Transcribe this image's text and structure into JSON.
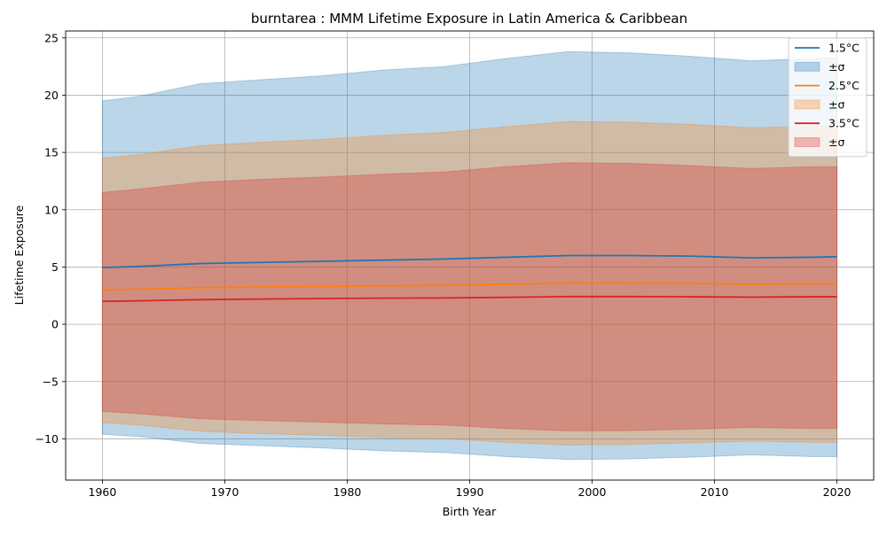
{
  "chart_data": {
    "type": "area",
    "title": "burntarea : MMM Lifetime Exposure in Latin America & Caribbean",
    "xlabel": "Birth Year",
    "ylabel": "Lifetime Exposure",
    "xlim": [
      1957,
      2023
    ],
    "ylim": [
      -13.6,
      25.6
    ],
    "xticks": [
      1960,
      1970,
      1980,
      1990,
      2000,
      2010,
      2020
    ],
    "xtick_labels": [
      "1960",
      "1970",
      "1980",
      "1990",
      "2000",
      "2010",
      "2020"
    ],
    "yticks": [
      -10,
      -5,
      0,
      5,
      10,
      15,
      20,
      25
    ],
    "ytick_labels": [
      "−10",
      "−5",
      "0",
      "5",
      "10",
      "15",
      "20",
      "25"
    ],
    "grid": true,
    "legend_position": "top-right",
    "x": [
      1960,
      1963,
      1968,
      1973,
      1978,
      1983,
      1988,
      1993,
      1998,
      2003,
      2008,
      2013,
      2018,
      2020
    ],
    "series": [
      {
        "name": "1.5°C",
        "band_label": "±σ",
        "color": "#1f77b4",
        "mean": [
          4.95,
          5.05,
          5.3,
          5.4,
          5.5,
          5.6,
          5.7,
          5.85,
          6.0,
          6.0,
          5.95,
          5.8,
          5.85,
          5.9
        ],
        "upper": [
          19.5,
          19.9,
          21.0,
          21.35,
          21.7,
          22.2,
          22.5,
          23.2,
          23.8,
          23.7,
          23.4,
          23.0,
          23.2,
          23.3
        ],
        "lower": [
          -9.6,
          -9.8,
          -10.4,
          -10.6,
          -10.8,
          -11.05,
          -11.2,
          -11.55,
          -11.8,
          -11.75,
          -11.6,
          -11.4,
          -11.55,
          -11.55
        ]
      },
      {
        "name": "2.5°C",
        "band_label": "±σ",
        "color": "#ff7f0e",
        "mean": [
          3.0,
          3.05,
          3.2,
          3.25,
          3.3,
          3.35,
          3.4,
          3.5,
          3.6,
          3.6,
          3.58,
          3.5,
          3.55,
          3.55
        ],
        "upper": [
          14.5,
          14.8,
          15.6,
          15.9,
          16.15,
          16.5,
          16.75,
          17.25,
          17.7,
          17.65,
          17.45,
          17.15,
          17.3,
          17.35
        ],
        "lower": [
          -8.6,
          -8.8,
          -9.35,
          -9.55,
          -9.7,
          -9.9,
          -10.0,
          -10.3,
          -10.55,
          -10.5,
          -10.35,
          -10.2,
          -10.3,
          -10.3
        ]
      },
      {
        "name": "3.5°C",
        "band_label": "±σ",
        "color": "#d62728",
        "mean": [
          2.0,
          2.05,
          2.15,
          2.2,
          2.25,
          2.28,
          2.3,
          2.35,
          2.42,
          2.42,
          2.4,
          2.37,
          2.4,
          2.4
        ],
        "upper": [
          11.5,
          11.8,
          12.4,
          12.65,
          12.85,
          13.1,
          13.3,
          13.75,
          14.1,
          14.05,
          13.85,
          13.6,
          13.75,
          13.75
        ],
        "lower": [
          -7.6,
          -7.8,
          -8.25,
          -8.4,
          -8.55,
          -8.7,
          -8.8,
          -9.1,
          -9.3,
          -9.28,
          -9.15,
          -9.0,
          -9.1,
          -9.1
        ]
      }
    ]
  }
}
